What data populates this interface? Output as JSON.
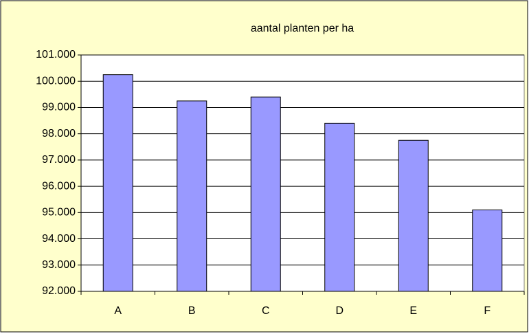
{
  "chart_data": {
    "type": "bar",
    "title": "aantal planten per ha",
    "categories": [
      "A",
      "B",
      "C",
      "D",
      "E",
      "F"
    ],
    "values": [
      100250,
      99250,
      99400,
      98400,
      97750,
      95100
    ],
    "color": "#9999ff",
    "ylim": [
      92000,
      101000
    ],
    "yticks": [
      {
        "value": 92000,
        "label": "92.000"
      },
      {
        "value": 93000,
        "label": "93.000"
      },
      {
        "value": 94000,
        "label": "94.000"
      },
      {
        "value": 95000,
        "label": "95.000"
      },
      {
        "value": 96000,
        "label": "96.000"
      },
      {
        "value": 97000,
        "label": "97.000"
      },
      {
        "value": 98000,
        "label": "98.000"
      },
      {
        "value": 99000,
        "label": "99.000"
      },
      {
        "value": 100000,
        "label": "100.000"
      },
      {
        "value": 101000,
        "label": "101.000"
      }
    ],
    "grid": true
  }
}
